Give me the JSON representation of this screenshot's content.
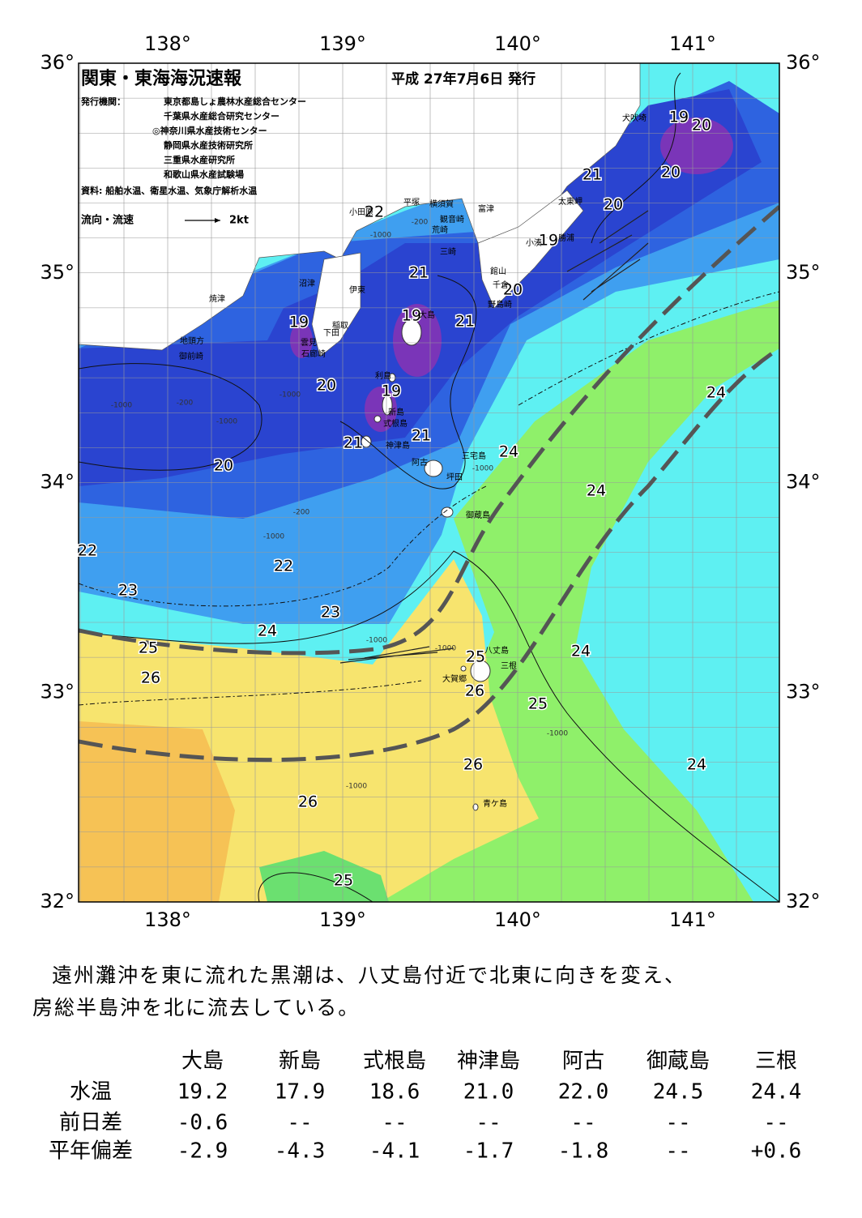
{
  "header": {
    "title": "関東・東海海況速報",
    "date": "平成 27年7月6日 発行",
    "issuer_label": "発行機関：",
    "institutions": [
      "東京都島しょ農林水産総合センター",
      "千葉県水産総合研究センター",
      "◎神奈川県水産技術センター",
      "静岡県水産技術研究所",
      "三重県水産研究所",
      "和歌山県水産試験場"
    ],
    "sources": "資料: 船舶水温、衛星水温、気象庁解析水温",
    "flow_legend": "流向・流速",
    "flow_scale": "2kt"
  },
  "map": {
    "lon_labels": [
      "138°",
      "139°",
      "140°",
      "141°"
    ],
    "lat_labels": [
      "36°",
      "35°",
      "34°",
      "33°",
      "32°"
    ],
    "contour_labels": [
      "19",
      "20",
      "20",
      "21",
      "20",
      "19",
      "22",
      "21",
      "20",
      "19",
      "19",
      "21",
      "20",
      "19",
      "21",
      "21",
      "20",
      "24",
      "24",
      "24",
      "22",
      "22",
      "23",
      "23",
      "24",
      "25",
      "26",
      "25",
      "26",
      "24",
      "25",
      "24",
      "26",
      "26",
      "25"
    ],
    "places": [
      "犬吠埼",
      "太東岬",
      "勝浦",
      "小湊",
      "館山",
      "千倉",
      "野島崎",
      "富津",
      "観音崎",
      "横須賀",
      "平塚",
      "荒崎",
      "三崎",
      "小田原",
      "沼津",
      "伊東",
      "焼津",
      "稲取",
      "下田",
      "雲見",
      "石廊崎",
      "地頭方",
      "御前崎",
      "大島",
      "利島",
      "新島",
      "式根島",
      "神津島",
      "阿古",
      "三宅島",
      "坪田",
      "御蔵島",
      "八丈島",
      "三根",
      "大賀郷",
      "青ケ島"
    ],
    "depths": [
      "-200",
      "-1000",
      "-1000",
      "-200",
      "-1000",
      "-1000",
      "-200",
      "-1000",
      "-1000",
      "-1000",
      "-1000",
      "-1000",
      "-1000"
    ]
  },
  "summary": [
    "遠州灘沖を東に流れた黒潮は、八丈島付近で北東に向きを変え、",
    "房総半島沖を北に流去している。"
  ],
  "table": {
    "columns": [
      "大島",
      "新島",
      "式根島",
      "神津島",
      "阿古",
      "御蔵島",
      "三根"
    ],
    "rows": [
      {
        "label": "水温",
        "cells": [
          "19.2",
          "17.9",
          "18.6",
          "21.0",
          "22.0",
          "24.5",
          "24.4"
        ]
      },
      {
        "label": "前日差",
        "cells": [
          "-0.6",
          "--",
          "--",
          "--",
          "--",
          "--",
          "--"
        ]
      },
      {
        "label": "平年偏差",
        "cells": [
          "-2.9",
          "-4.3",
          "-4.1",
          "-1.7",
          "-1.8",
          "--",
          "+0.6"
        ]
      }
    ]
  }
}
